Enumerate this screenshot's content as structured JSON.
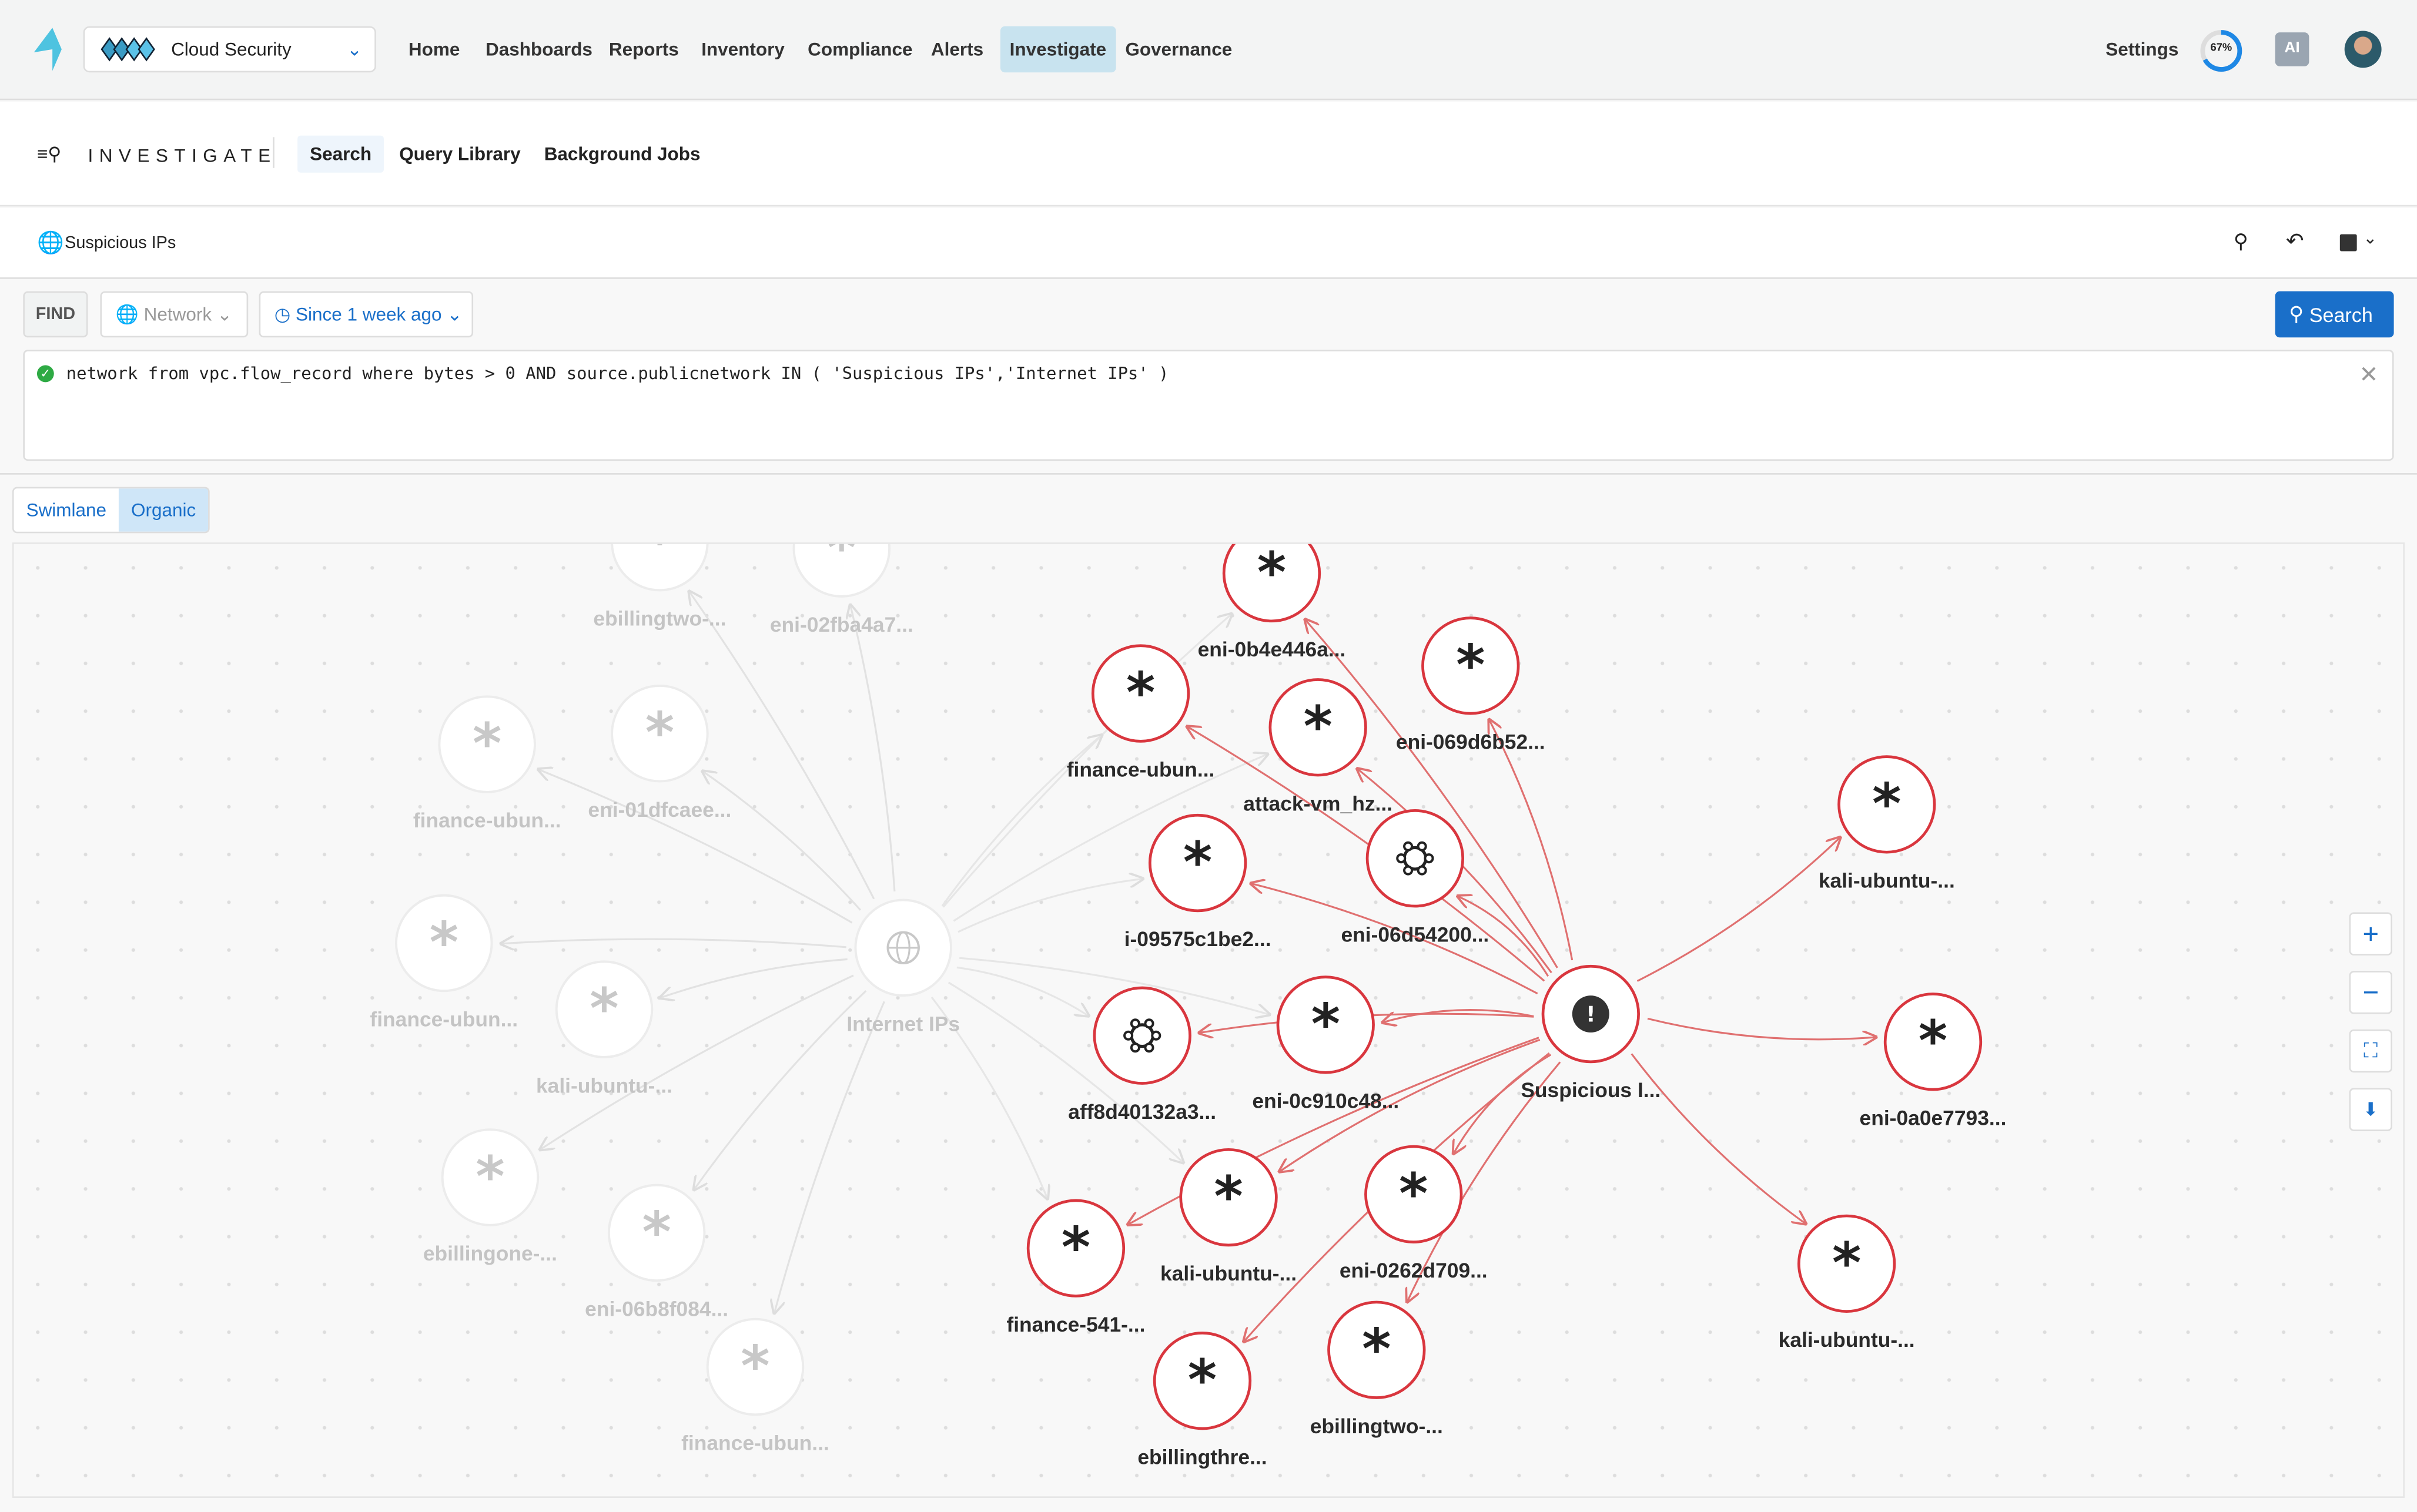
{
  "topbar": {
    "product": "Cloud Security",
    "nav": [
      "Home",
      "Dashboards",
      "Reports",
      "Inventory",
      "Compliance",
      "Alerts",
      "Investigate",
      "Governance"
    ],
    "active_nav": "Investigate",
    "settings": "Settings",
    "progress_label": "67%",
    "progress": 0.67,
    "ai_label": "AI"
  },
  "subnav": {
    "title": "INVESTIGATE",
    "tabs": [
      "Search",
      "Query Library",
      "Background Jobs"
    ],
    "active": "Search"
  },
  "query_bar": {
    "name": "Suspicious IPs"
  },
  "find": {
    "label": "FIND",
    "type": "Network",
    "time": "Since 1 week ago",
    "search_button": "Search"
  },
  "query": {
    "text": "network from vpc.flow_record where bytes > 0 AND source.publicnetwork IN ( 'Suspicious IPs','Internet IPs' )",
    "status": "valid"
  },
  "view": {
    "tabs": [
      "Swimlane",
      "Organic"
    ],
    "active": "Organic"
  },
  "colors": {
    "accent": "#1a6fc9",
    "edge": "#e07070",
    "node_border": "#d9363e",
    "faded": "#c8c8c8"
  },
  "graph": {
    "faded_nodes": [
      {
        "label": "ebillingtwo-...",
        "icon": "asterisk"
      },
      {
        "label": "eni-02fba4a7...",
        "icon": "asterisk"
      },
      {
        "label": "finance-ubun...",
        "icon": "asterisk"
      },
      {
        "label": "eni-01dfcaee...",
        "icon": "asterisk"
      },
      {
        "label": "finance-ubun...",
        "icon": "asterisk"
      },
      {
        "label": "kali-ubuntu-...",
        "icon": "asterisk"
      },
      {
        "label": "Internet IPs",
        "icon": "globe"
      },
      {
        "label": "ebillingone-...",
        "icon": "asterisk"
      },
      {
        "label": "eni-06b8f084...",
        "icon": "asterisk"
      },
      {
        "label": "finance-ubun...",
        "icon": "asterisk"
      }
    ],
    "active_nodes": [
      {
        "label": "eni-0b4e446a...",
        "icon": "asterisk"
      },
      {
        "label": "eni-069d6b52...",
        "icon": "asterisk"
      },
      {
        "label": "finance-ubun...",
        "icon": "asterisk"
      },
      {
        "label": "attack-vm_hz...",
        "icon": "asterisk"
      },
      {
        "label": "eni-06d54200...",
        "icon": "cluster"
      },
      {
        "label": "i-09575c1be2...",
        "icon": "asterisk"
      },
      {
        "label": "kali-ubuntu-...",
        "icon": "asterisk"
      },
      {
        "label": "Suspicious I...",
        "icon": "alert"
      },
      {
        "label": "aff8d40132a3...",
        "icon": "cluster"
      },
      {
        "label": "eni-0c910c48...",
        "icon": "asterisk"
      },
      {
        "label": "eni-0a0e7793...",
        "icon": "asterisk"
      },
      {
        "label": "kali-ubuntu-...",
        "icon": "asterisk"
      },
      {
        "label": "eni-0262d709...",
        "icon": "asterisk"
      },
      {
        "label": "finance-541-...",
        "icon": "asterisk"
      },
      {
        "label": "kali-ubuntu-...",
        "icon": "asterisk"
      },
      {
        "label": "ebillingtwo-...",
        "icon": "asterisk"
      },
      {
        "label": "ebillingthre...",
        "icon": "asterisk"
      }
    ]
  }
}
